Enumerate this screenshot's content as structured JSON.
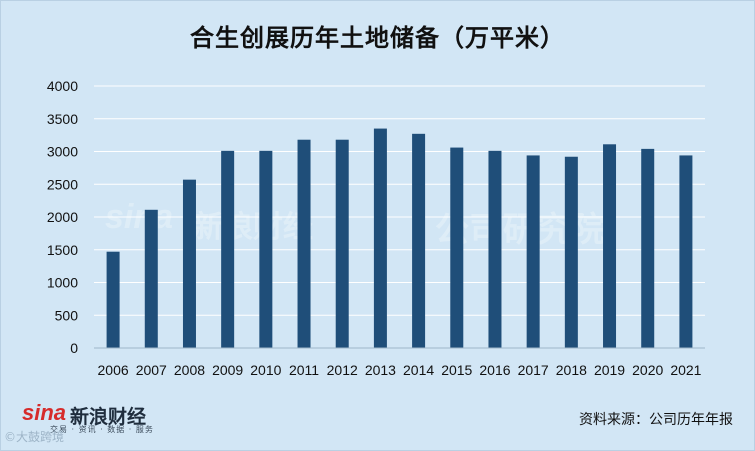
{
  "chart_data": {
    "type": "bar",
    "title": "合生创展历年土地储备（万平米）",
    "categories": [
      "2006",
      "2007",
      "2008",
      "2009",
      "2010",
      "2011",
      "2012",
      "2013",
      "2014",
      "2015",
      "2016",
      "2017",
      "2018",
      "2019",
      "2020",
      "2021"
    ],
    "values": [
      1470,
      2110,
      2570,
      3010,
      3010,
      3180,
      3180,
      3350,
      3270,
      3060,
      3010,
      2940,
      2920,
      3110,
      3040,
      2940
    ],
    "ylim": [
      0,
      4000
    ],
    "yticks": [
      "0",
      "500",
      "1000",
      "1500",
      "2000",
      "2500",
      "3000",
      "3500",
      "4000"
    ],
    "grid": true,
    "bar_color": "#1f4e79",
    "grid_color": "#ffffff"
  },
  "source": "资料来源：公司历年年报",
  "logo": {
    "brand": "sina",
    "name": "新浪财经",
    "tagline": "交易 · 资讯 · 数据 · 服务"
  },
  "watermark": {
    "brand": "sina",
    "name": "新浪财经",
    "name2": "公司研究院"
  },
  "bottom_mark": "©大鼓跨境"
}
